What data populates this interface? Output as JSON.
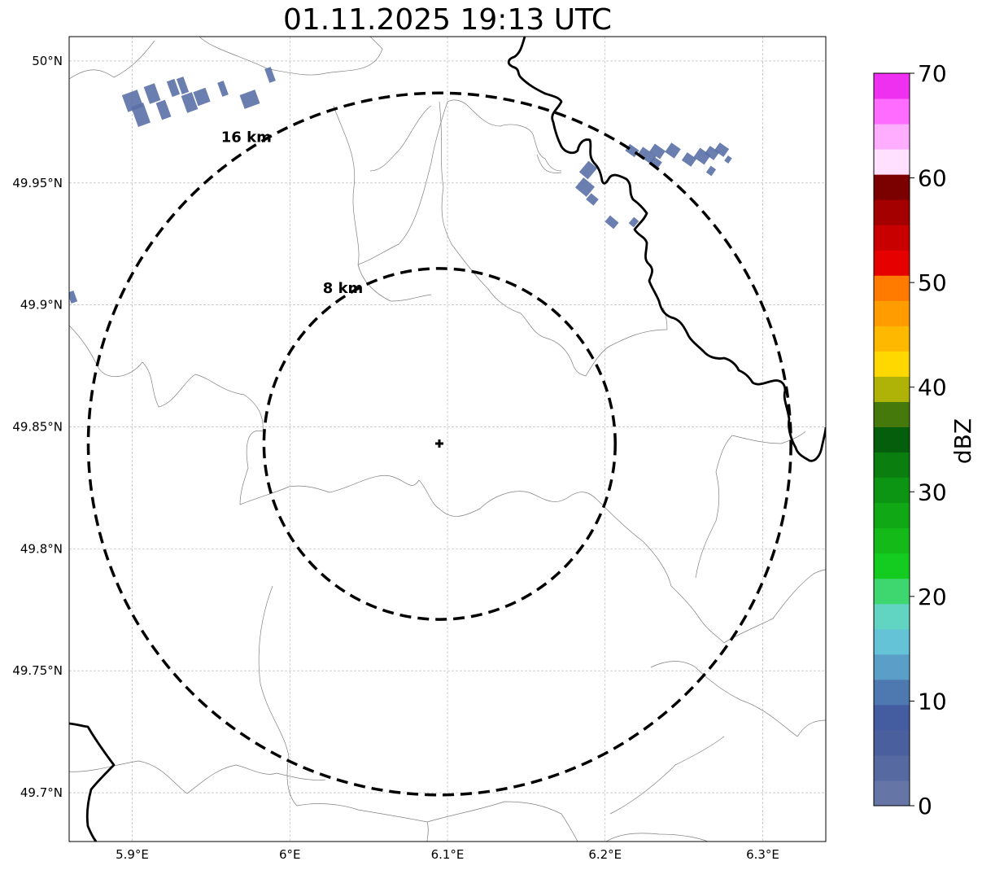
{
  "title": "01.11.2025 19:13 UTC",
  "map": {
    "lon_range": [
      5.86,
      6.34
    ],
    "lat_range": [
      49.68,
      50.01
    ],
    "center": {
      "lon": 6.095,
      "lat": 49.843
    },
    "lon_ticks": [
      {
        "value": 5.9,
        "label": "5.9°E"
      },
      {
        "value": 6.0,
        "label": "6°E"
      },
      {
        "value": 6.1,
        "label": "6.1°E"
      },
      {
        "value": 6.2,
        "label": "6.2°E"
      },
      {
        "value": 6.3,
        "label": "6.3°E"
      }
    ],
    "lat_ticks": [
      {
        "value": 50.0,
        "label": "50°N"
      },
      {
        "value": 49.95,
        "label": "49.95°N"
      },
      {
        "value": 49.9,
        "label": "49.9°N"
      },
      {
        "value": 49.85,
        "label": "49.85°N"
      },
      {
        "value": 49.8,
        "label": "49.8°N"
      },
      {
        "value": 49.75,
        "label": "49.75°N"
      },
      {
        "value": 49.7,
        "label": "49.7°N"
      }
    ],
    "rings": [
      {
        "radius_km": 8,
        "label": "8 km"
      },
      {
        "radius_km": 16,
        "label": "16 km"
      }
    ],
    "grid": true
  },
  "colorbar": {
    "label": "dBZ",
    "ticks": [
      "0",
      "10",
      "20",
      "30",
      "40",
      "50",
      "60",
      "70"
    ],
    "colors": [
      "#6475a6",
      "#5669a0",
      "#4a5f9e",
      "#445ca0",
      "#4d79b0",
      "#5b9fc8",
      "#65c3d8",
      "#61d5c1",
      "#3ed66f",
      "#13cc1f",
      "#13ba18",
      "#10a815",
      "#0c9512",
      "#0a7e0f",
      "#055e0b",
      "#46790c",
      "#b0b307",
      "#ffd800",
      "#ffb800",
      "#ff9c00",
      "#ff7b00",
      "#e60000",
      "#c80000",
      "#a50000",
      "#7b0000",
      "#ffe0ff",
      "#ffadff",
      "#ff6cff",
      "#f030f0"
    ]
  },
  "echo_color": "#5a70a6"
}
